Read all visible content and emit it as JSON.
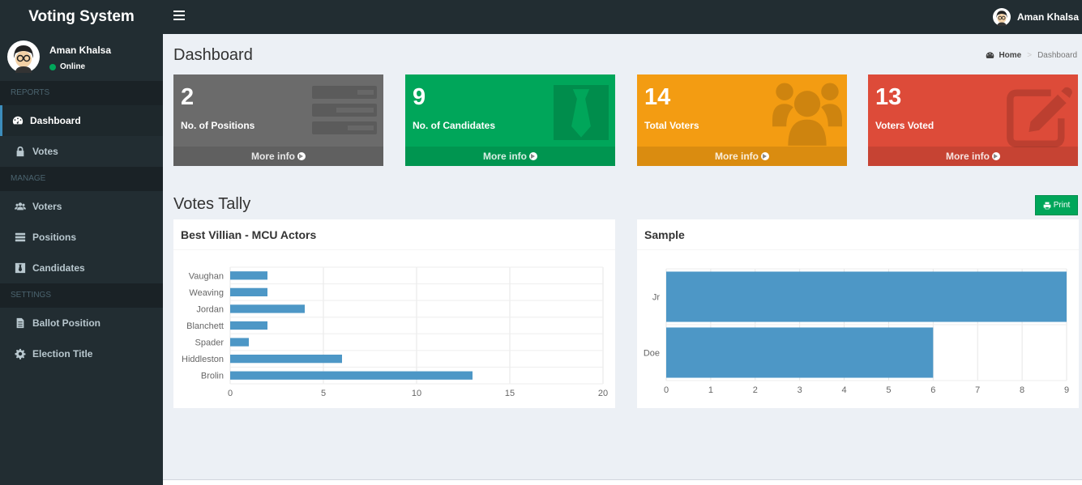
{
  "app": {
    "title": "Voting System"
  },
  "user": {
    "name": "Aman Khalsa",
    "status": "Online"
  },
  "sidebar": {
    "sections": [
      {
        "header": "REPORTS",
        "items": [
          {
            "label": "Dashboard",
            "icon": "dashboard-icon",
            "active": true
          },
          {
            "label": "Votes",
            "icon": "lock-icon"
          }
        ]
      },
      {
        "header": "MANAGE",
        "items": [
          {
            "label": "Voters",
            "icon": "users-icon"
          },
          {
            "label": "Positions",
            "icon": "tasks-icon"
          },
          {
            "label": "Candidates",
            "icon": "black-tie-icon"
          }
        ]
      },
      {
        "header": "SETTINGS",
        "items": [
          {
            "label": "Ballot Position",
            "icon": "file-text-icon"
          },
          {
            "label": "Election Title",
            "icon": "cog-icon"
          }
        ]
      }
    ]
  },
  "page": {
    "title": "Dashboard"
  },
  "breadcrumb": {
    "home": "Home",
    "current": "Dashboard"
  },
  "stats": [
    {
      "value": "2",
      "label": "No. of Positions",
      "more": "More info",
      "color": "#6b6b6b",
      "icon": "tasks-icon"
    },
    {
      "value": "9",
      "label": "No. of Candidates",
      "more": "More info",
      "color": "#00a65a",
      "icon": "black-tie-icon"
    },
    {
      "value": "14",
      "label": "Total Voters",
      "more": "More info",
      "color": "#f39c12",
      "icon": "users-icon"
    },
    {
      "value": "13",
      "label": "Voters Voted",
      "more": "More info",
      "color": "#dd4b39",
      "icon": "edit-icon"
    }
  ],
  "tally": {
    "title": "Votes Tally",
    "print_label": "Print"
  },
  "chart_data": [
    {
      "type": "bar",
      "orientation": "horizontal",
      "title": "Best Villian - MCU Actors",
      "categories": [
        "Vaughan",
        "Weaving",
        "Jordan",
        "Blanchett",
        "Spader",
        "Hiddleston",
        "Brolin"
      ],
      "values": [
        2,
        2,
        4,
        2,
        1,
        6,
        13
      ],
      "xlim": [
        0,
        20
      ],
      "xticks": [
        0,
        5,
        10,
        15,
        20
      ],
      "grid": true,
      "color": "#4d97c6"
    },
    {
      "type": "bar",
      "orientation": "horizontal",
      "title": "Sample",
      "categories": [
        "Jr",
        "Doe"
      ],
      "values": [
        9,
        6
      ],
      "xlim": [
        0,
        9
      ],
      "xticks": [
        0,
        1,
        2,
        3,
        4,
        5,
        6,
        7,
        8,
        9
      ],
      "grid": true,
      "color": "#4d97c6"
    }
  ]
}
